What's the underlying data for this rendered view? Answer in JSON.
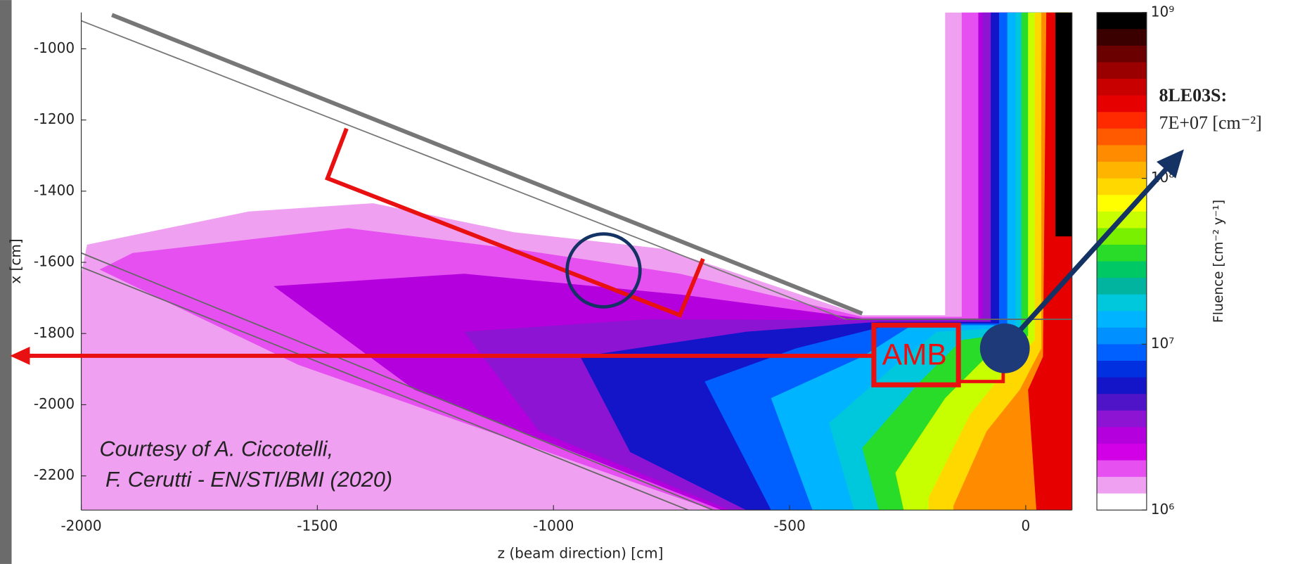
{
  "chart_data": {
    "type": "heatmap",
    "x_label": "z (beam direction) [cm]",
    "y_label": "x [cm]",
    "xlim": [
      -2000,
      98
    ],
    "ylim": [
      -2296,
      -898
    ],
    "xticks": [
      -2000,
      -1500,
      -1000,
      -500,
      0
    ],
    "yticks": [
      -1000,
      -1200,
      -1400,
      -1600,
      -1800,
      -2000,
      -2200
    ],
    "colorbar": {
      "label": "Fluence [cm⁻² y⁻¹]",
      "log_scale": true,
      "lim": [
        1000000,
        1000000000
      ],
      "ticks": [
        {
          "value": 1000000,
          "label": "10⁶"
        },
        {
          "value": 10000000,
          "label": "10⁷"
        },
        {
          "value": 100000000,
          "label": "10⁸"
        },
        {
          "value": 1000000000,
          "label": "10⁹"
        }
      ],
      "colors": [
        "#000000",
        "#3a0000",
        "#6a0000",
        "#9a0000",
        "#c80000",
        "#e60000",
        "#ff2a00",
        "#ff5a00",
        "#ff8c00",
        "#ffb400",
        "#ffd800",
        "#ffff00",
        "#c8ff00",
        "#78f000",
        "#2adc2a",
        "#00c864",
        "#00b4a0",
        "#00c8dc",
        "#00b4ff",
        "#0090ff",
        "#0060ff",
        "#0030e0",
        "#1414c8",
        "#5014c8",
        "#8c14d2",
        "#b400dc",
        "#d200e6",
        "#e650f0",
        "#f0a0f0",
        "#ffffff"
      ]
    },
    "annotations": {
      "box_label": "AMB",
      "sensor_name": "8LE03S:",
      "sensor_value": "7E+07 [cm⁻²]",
      "credit_line1": "Courtesy of A. Ciccotelli,",
      "credit_line2": " F. Cerutti - EN/STI/BMI (2020)"
    }
  }
}
